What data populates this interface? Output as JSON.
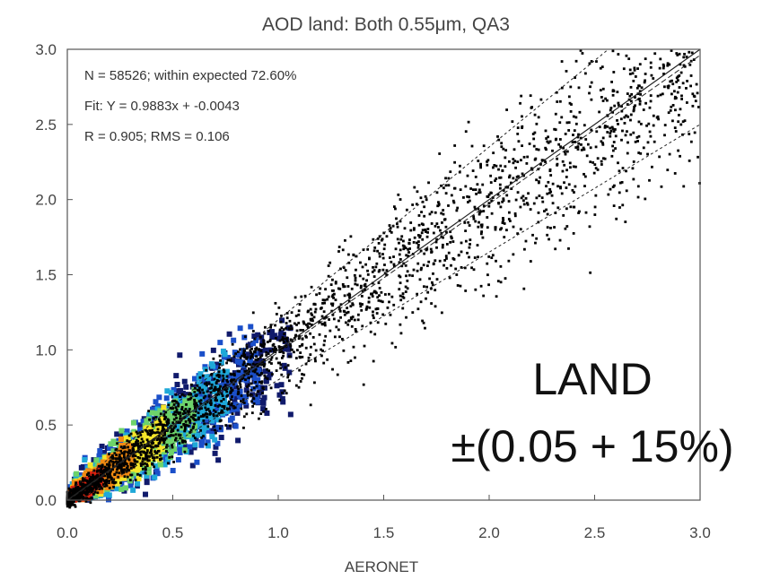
{
  "chart_data": {
    "type": "scatter",
    "title": "AOD land: Both 0.55μm, QA3",
    "xlabel": "AERONET",
    "ylabel": "",
    "xlim": [
      0.0,
      3.0
    ],
    "ylim": [
      0.0,
      3.0
    ],
    "x_ticks": [
      "0.0",
      "0.5",
      "1.0",
      "1.5",
      "2.0",
      "2.5",
      "3.0"
    ],
    "y_ticks": [
      "0.0",
      "0.5",
      "1.0",
      "1.5",
      "2.0",
      "2.5",
      "3.0"
    ],
    "stats": [
      "N = 58526; within expected  72.60%",
      "Fit: Y =  0.9883x + -0.0043",
      "R =  0.905; RMS =  0.106"
    ],
    "fit": {
      "slope": 0.9883,
      "intercept": -0.0043
    },
    "expected_error": {
      "abs": 0.05,
      "rel": 0.15
    },
    "density_colors": [
      "#e0230f",
      "#f28a12",
      "#f5e52a",
      "#6ed36a",
      "#1fa8d8",
      "#1b4fc9",
      "#101a6b"
    ],
    "points_color": "#000000",
    "annotation": {
      "line1": "LAND",
      "line2": "±(0.05 + 15%)"
    },
    "grid": false
  }
}
